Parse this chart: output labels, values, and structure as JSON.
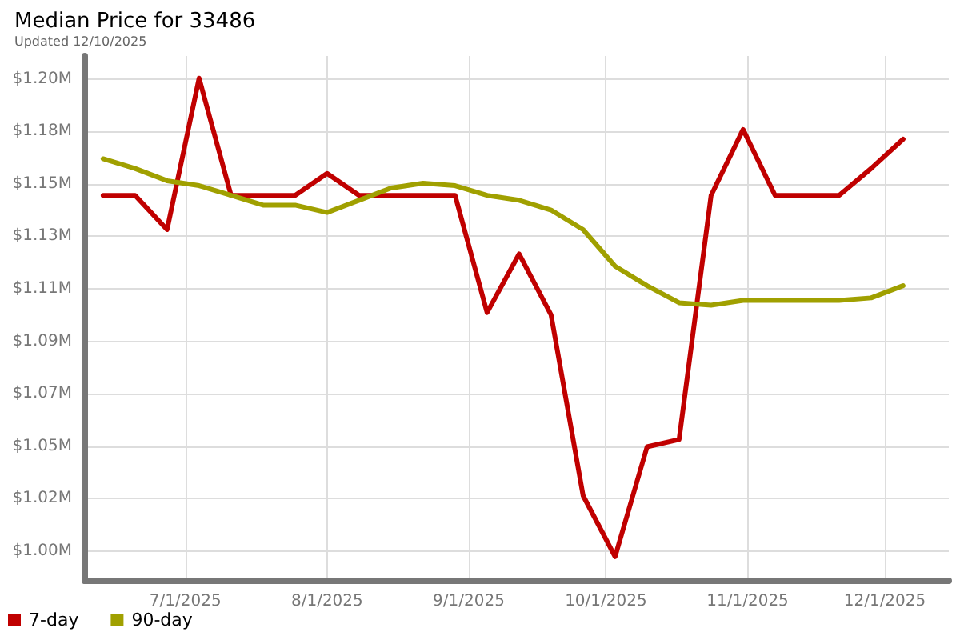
{
  "chart_data": {
    "type": "line",
    "title": "Median Price for 33486",
    "subtitle": "Updated 12/10/2025",
    "x": [
      "2025-06-13",
      "2025-06-20",
      "2025-06-27",
      "2025-07-04",
      "2025-07-11",
      "2025-07-18",
      "2025-07-25",
      "2025-08-01",
      "2025-08-08",
      "2025-08-15",
      "2025-08-22",
      "2025-08-29",
      "2025-09-05",
      "2025-09-12",
      "2025-09-19",
      "2025-09-26",
      "2025-10-03",
      "2025-10-10",
      "2025-10-17",
      "2025-10-24",
      "2025-10-31",
      "2025-11-07",
      "2025-11-14",
      "2025-11-21",
      "2025-11-28",
      "2025-12-05"
    ],
    "series": [
      {
        "name": "7-day",
        "color": "#c00000",
        "values": [
          1.149,
          1.149,
          1.135,
          1.197,
          1.149,
          1.149,
          1.149,
          1.158,
          1.149,
          1.149,
          1.149,
          1.149,
          1.101,
          1.125,
          1.1,
          1.026,
          1.001,
          1.046,
          1.049,
          1.149,
          1.176,
          1.149,
          1.149,
          1.149,
          1.16,
          1.172
        ]
      },
      {
        "name": "90-day",
        "color": "#a0a000",
        "values": [
          1.164,
          1.16,
          1.155,
          1.153,
          1.149,
          1.145,
          1.145,
          1.142,
          1.147,
          1.152,
          1.154,
          1.153,
          1.149,
          1.147,
          1.143,
          1.135,
          1.12,
          1.112,
          1.105,
          1.104,
          1.106,
          1.106,
          1.106,
          1.106,
          1.107,
          1.112
        ]
      }
    ],
    "xlim": [
      "2025-06-09",
      "2025-12-15"
    ],
    "xticks": [
      {
        "value": "2025-07-01",
        "label": "7/1/2025"
      },
      {
        "value": "2025-08-01",
        "label": "8/1/2025"
      },
      {
        "value": "2025-09-01",
        "label": "9/1/2025"
      },
      {
        "value": "2025-10-01",
        "label": "10/1/2025"
      },
      {
        "value": "2025-11-01",
        "label": "11/1/2025"
      },
      {
        "value": "2025-12-01",
        "label": "12/1/2025"
      }
    ],
    "ylim": [
      0.9911,
      1.2061
    ],
    "yticks": [
      {
        "value": 1.0032,
        "label": "$1.00M"
      },
      {
        "value": 1.0247,
        "label": "$1.02M"
      },
      {
        "value": 1.0462,
        "label": "$1.05M"
      },
      {
        "value": 1.0677,
        "label": "$1.07M"
      },
      {
        "value": 1.0892,
        "label": "$1.09M"
      },
      {
        "value": 1.1107,
        "label": "$1.11M"
      },
      {
        "value": 1.1322,
        "label": "$1.13M"
      },
      {
        "value": 1.1537,
        "label": "$1.15M"
      },
      {
        "value": 1.1752,
        "label": "$1.18M"
      },
      {
        "value": 1.1967,
        "label": "$1.20M"
      }
    ],
    "grid": true,
    "legend": "bottom left",
    "marker": "none",
    "line_style": "solid"
  }
}
